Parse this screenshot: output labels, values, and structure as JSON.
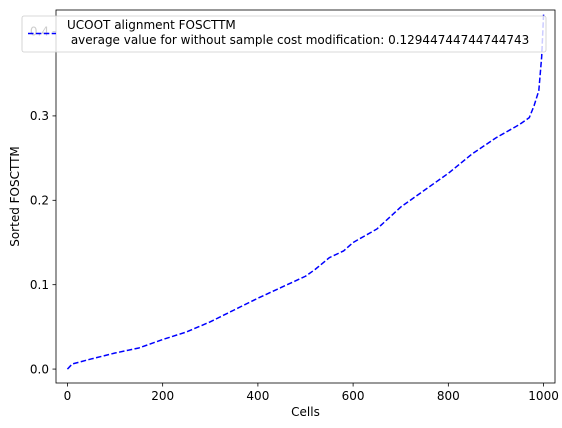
{
  "chart_data": {
    "type": "line",
    "xlabel": "Cells",
    "ylabel": "Sorted FOSCTTM",
    "xlim": [
      -24,
      1024
    ],
    "ylim": [
      -0.0165,
      0.4255
    ],
    "x_ticks": [
      0,
      200,
      400,
      600,
      800,
      1000
    ],
    "x_tick_labels": [
      "0",
      "200",
      "400",
      "600",
      "800",
      "1000"
    ],
    "y_ticks": [
      0.0,
      0.1,
      0.2,
      0.3,
      0.4
    ],
    "y_tick_labels": [
      "0.0",
      "0.1",
      "0.2",
      "0.3",
      "0.4"
    ],
    "grid": false,
    "legend": {
      "placement": "top-right",
      "line1": "UCOOT alignment FOSCTTM",
      "line2": " average value for without sample cost modification: 0.12944744744744743"
    },
    "series": [
      {
        "name": "UCOOT alignment FOSCTTM\n average value for without sample cost modification: 0.12944744744744743",
        "color": "#0000ff",
        "line_style": "dashed",
        "x": [
          0,
          10,
          50,
          100,
          150,
          200,
          250,
          300,
          350,
          400,
          450,
          500,
          520,
          550,
          580,
          600,
          650,
          700,
          750,
          800,
          850,
          900,
          950,
          970,
          980,
          990,
          996,
          1000
        ],
        "y": [
          0.0,
          0.006,
          0.012,
          0.019,
          0.025,
          0.035,
          0.044,
          0.056,
          0.07,
          0.084,
          0.097,
          0.11,
          0.118,
          0.132,
          0.14,
          0.15,
          0.166,
          0.192,
          0.212,
          0.232,
          0.255,
          0.274,
          0.29,
          0.298,
          0.312,
          0.33,
          0.37,
          0.42
        ]
      }
    ]
  }
}
